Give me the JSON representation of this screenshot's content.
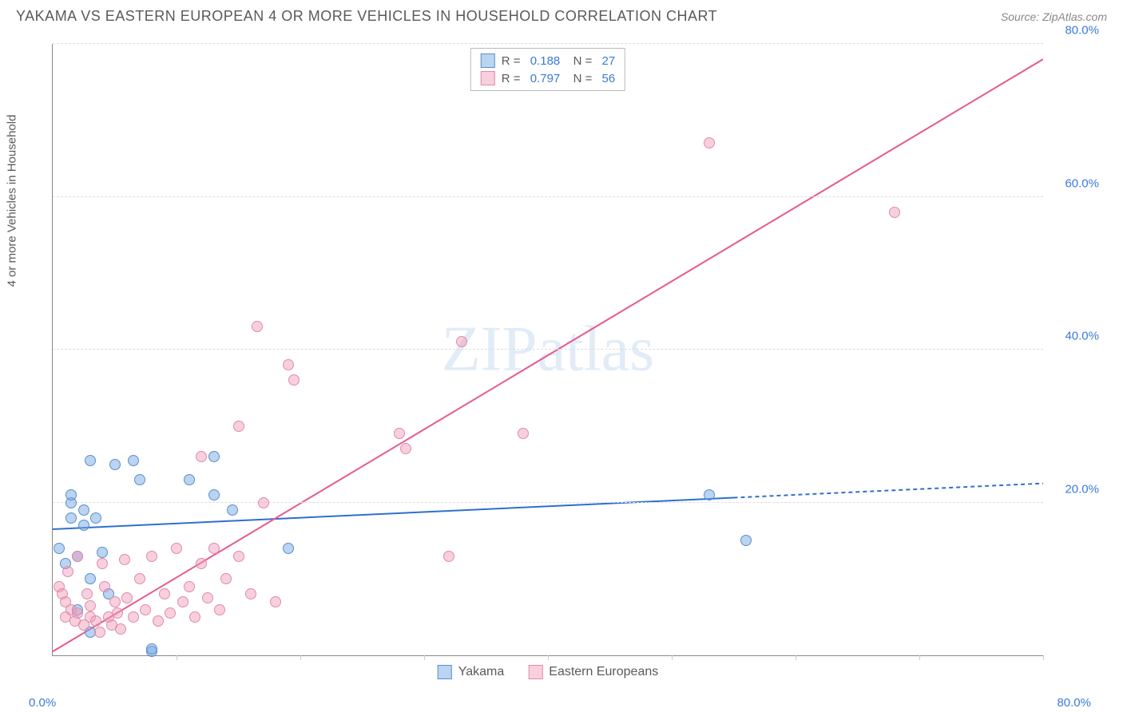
{
  "header": {
    "title": "YAKAMA VS EASTERN EUROPEAN 4 OR MORE VEHICLES IN HOUSEHOLD CORRELATION CHART",
    "source": "Source: ZipAtlas.com"
  },
  "chart": {
    "type": "scatter",
    "y_axis_label": "4 or more Vehicles in Household",
    "watermark": "ZIPatlas",
    "xlim": [
      0,
      80
    ],
    "ylim": [
      0,
      80
    ],
    "y_ticks": [
      20,
      40,
      60,
      80
    ],
    "y_tick_labels": [
      "20.0%",
      "40.0%",
      "60.0%",
      "80.0%"
    ],
    "x_ticks": [
      0,
      10,
      20,
      30,
      40,
      50,
      60,
      70,
      80
    ],
    "x_axis_labels": {
      "min": "0.0%",
      "max": "80.0%"
    },
    "axis_label_color": "#3a7bd5",
    "grid_color": "#dddddd",
    "background_color": "#ffffff",
    "series": [
      {
        "name": "Yakama",
        "color_fill": "rgba(120,170,230,0.5)",
        "color_stroke": "#5b8fc7",
        "trend_color": "#2e6fd1",
        "trend_dash_after_x": 55,
        "R": "0.188",
        "N": "27",
        "trend": {
          "x1": 0,
          "y1": 16.5,
          "x2": 80,
          "y2": 22.5
        },
        "marker_size": 14,
        "points": [
          [
            0.5,
            14
          ],
          [
            1,
            12
          ],
          [
            1.5,
            20
          ],
          [
            1.5,
            21
          ],
          [
            1.5,
            18
          ],
          [
            2,
            6
          ],
          [
            2,
            13
          ],
          [
            2.5,
            19
          ],
          [
            2.5,
            17
          ],
          [
            3,
            25.5
          ],
          [
            3,
            10
          ],
          [
            3,
            3
          ],
          [
            3.5,
            18
          ],
          [
            4,
            13.5
          ],
          [
            4.5,
            8
          ],
          [
            5,
            25
          ],
          [
            6.5,
            25.5
          ],
          [
            7,
            23
          ],
          [
            8,
            0.5
          ],
          [
            8,
            0.8
          ],
          [
            11,
            23
          ],
          [
            13,
            21
          ],
          [
            13,
            26
          ],
          [
            14.5,
            19
          ],
          [
            19,
            14
          ],
          [
            53,
            21
          ],
          [
            56,
            15
          ]
        ]
      },
      {
        "name": "Eastern Europeans",
        "color_fill": "rgba(240,150,180,0.45)",
        "color_stroke": "#e08aad",
        "trend_color": "#e75a8f",
        "trend_dash_after_x": 80,
        "R": "0.797",
        "N": "56",
        "trend": {
          "x1": 0,
          "y1": 0.5,
          "x2": 80,
          "y2": 78
        },
        "marker_size": 14,
        "points": [
          [
            0.5,
            9
          ],
          [
            0.8,
            8
          ],
          [
            1,
            7
          ],
          [
            1,
            5
          ],
          [
            1.2,
            11
          ],
          [
            1.5,
            6
          ],
          [
            1.8,
            4.5
          ],
          [
            2,
            5.5
          ],
          [
            2,
            13
          ],
          [
            2.5,
            4
          ],
          [
            2.8,
            8
          ],
          [
            3,
            5
          ],
          [
            3,
            6.5
          ],
          [
            3.5,
            4.5
          ],
          [
            3.8,
            3
          ],
          [
            4,
            12
          ],
          [
            4.2,
            9
          ],
          [
            4.5,
            5
          ],
          [
            4.8,
            4
          ],
          [
            5,
            7
          ],
          [
            5.2,
            5.5
          ],
          [
            5.5,
            3.5
          ],
          [
            5.8,
            12.5
          ],
          [
            6,
            7.5
          ],
          [
            6.5,
            5
          ],
          [
            7,
            10
          ],
          [
            7.5,
            6
          ],
          [
            8,
            13
          ],
          [
            8.5,
            4.5
          ],
          [
            9,
            8
          ],
          [
            9.5,
            5.5
          ],
          [
            10,
            14
          ],
          [
            10.5,
            7
          ],
          [
            11,
            9
          ],
          [
            11.5,
            5
          ],
          [
            12,
            12
          ],
          [
            12.5,
            7.5
          ],
          [
            12,
            26
          ],
          [
            13,
            14
          ],
          [
            13.5,
            6
          ],
          [
            14,
            10
          ],
          [
            15,
            13
          ],
          [
            15,
            30
          ],
          [
            16,
            8
          ],
          [
            16.5,
            43
          ],
          [
            17,
            20
          ],
          [
            18,
            7
          ],
          [
            19,
            38
          ],
          [
            19.5,
            36
          ],
          [
            28,
            29
          ],
          [
            28.5,
            27
          ],
          [
            33,
            41
          ],
          [
            38,
            29
          ],
          [
            32,
            13
          ],
          [
            53,
            67
          ],
          [
            68,
            58
          ]
        ]
      }
    ],
    "legend_top": [
      {
        "swatch_fill": "rgba(120,170,230,0.5)",
        "swatch_stroke": "#5b8fc7",
        "R": "0.188",
        "N": "27"
      },
      {
        "swatch_fill": "rgba(240,150,180,0.45)",
        "swatch_stroke": "#e08aad",
        "R": "0.797",
        "N": "56"
      }
    ],
    "legend_bottom": [
      {
        "swatch_fill": "rgba(120,170,230,0.5)",
        "swatch_stroke": "#5b8fc7",
        "label": "Yakama"
      },
      {
        "swatch_fill": "rgba(240,150,180,0.45)",
        "swatch_stroke": "#e08aad",
        "label": "Eastern Europeans"
      }
    ]
  }
}
